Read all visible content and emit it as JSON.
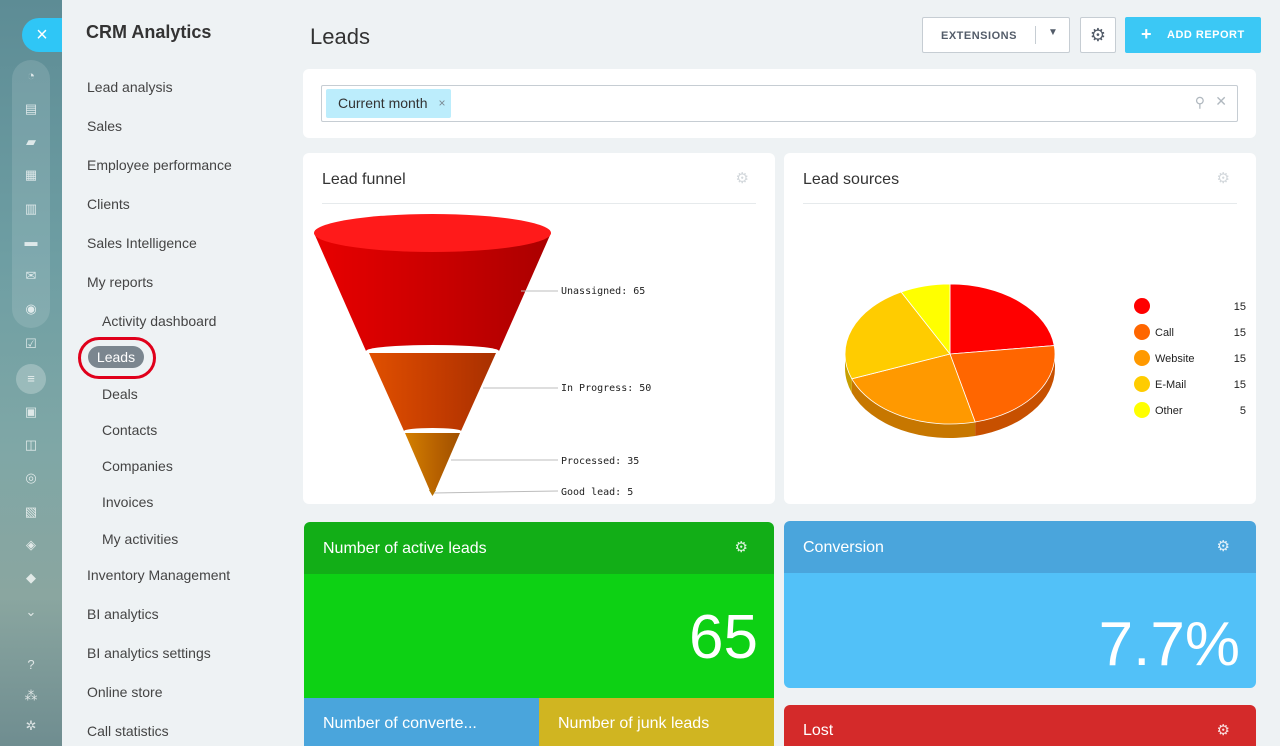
{
  "rail": {
    "close_icon": "×",
    "icons": [
      "activity-stream-icon",
      "feed-icon",
      "chat-icon",
      "calendar-icon",
      "documents-icon",
      "drive-icon",
      "mail-icon",
      "groups-icon",
      "tasks-icon",
      "crm-icon",
      "sites-icon",
      "store-icon",
      "marketing-icon",
      "contact-center-icon",
      "automation-icon",
      "more-icon",
      "help-icon",
      "structure-icon",
      "settings-icon"
    ]
  },
  "menu": {
    "title": "CRM Analytics",
    "items": [
      "Lead analysis",
      "Sales",
      "Employee performance",
      "Clients",
      "Sales Intelligence",
      "My reports"
    ],
    "my_reports": [
      "Activity dashboard",
      "Leads",
      "Deals",
      "Contacts",
      "Companies",
      "Invoices",
      "My activities"
    ],
    "items_after": [
      "Inventory Management",
      "BI analytics",
      "BI analytics settings",
      "Online store",
      "Call statistics"
    ]
  },
  "header": {
    "title": "Leads",
    "extensions_label": "EXTENSIONS",
    "add_report_label": "ADD REPORT"
  },
  "filter": {
    "chip": "Current month"
  },
  "funnel": {
    "title": "Lead funnel",
    "stages": [
      {
        "label": "Unassigned: 65",
        "value": 65,
        "color": "#d40000"
      },
      {
        "label": "In Progress: 50",
        "value": 50,
        "color": "#cc3a00"
      },
      {
        "label": "Processed: 35",
        "value": 35,
        "color": "#c26400"
      },
      {
        "label": "Good lead: 5",
        "value": 5,
        "color": "#b86f00"
      }
    ]
  },
  "sources": {
    "title": "Lead sources",
    "legend": [
      {
        "name": "",
        "value": "15",
        "color": "#ff0000"
      },
      {
        "name": "Call",
        "value": "15",
        "color": "#ff6600"
      },
      {
        "name": "Website",
        "value": "15",
        "color": "#ff9900"
      },
      {
        "name": "E-Mail",
        "value": "15",
        "color": "#ffcc00"
      },
      {
        "name": "Other",
        "value": "5",
        "color": "#ffff00"
      }
    ]
  },
  "tiles": {
    "active": {
      "title": "Number of active leads",
      "value": "65",
      "color": "#0dd114",
      "header_color": "#12ae17"
    },
    "conversion": {
      "title": "Conversion",
      "value": "7.7%",
      "color": "#52c1f8",
      "header_color": "#4aa5dc"
    },
    "converted": {
      "title": "Number of converte...",
      "color": "#4aa5dc"
    },
    "junk": {
      "title": "Number of junk leads",
      "color": "#d0b521"
    },
    "lost": {
      "title": "Lost",
      "color": "#d42a2a"
    }
  }
}
